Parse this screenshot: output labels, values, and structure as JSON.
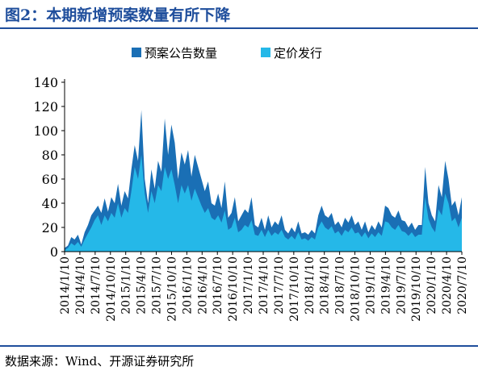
{
  "title": "图2：本期新增预案数量有所下降",
  "source": "数据来源：Wind、开源证券研究所",
  "colors": {
    "title": "#1f4e9c",
    "proposal": "#1a6fb5",
    "placement": "#25b8e8"
  },
  "chart_data": {
    "type": "area",
    "title": "",
    "xlabel": "",
    "ylabel": "",
    "ylim": [
      0,
      140
    ],
    "yticks": [
      0,
      20,
      40,
      60,
      80,
      100,
      120,
      140
    ],
    "grid": false,
    "legend_position": "top",
    "x_tick_labels": [
      "2014/1/10",
      "2014/4/10",
      "2014/7/10",
      "2014/10/10",
      "2015/1/10",
      "2015/4/10",
      "2015/7/10",
      "2015/10/10",
      "2016/1/10",
      "2016/4/10",
      "2016/7/10",
      "2016/10/10",
      "2017/1/10",
      "2017/4/10",
      "2017/7/10",
      "2017/10/10",
      "2018/1/10",
      "2018/4/10",
      "2018/7/10",
      "2018/10/10",
      "2019/1/10",
      "2019/4/10",
      "2019/7/10",
      "2019/10/10",
      "2020/1/10",
      "2020/4/10",
      "2020/7/10"
    ],
    "series": [
      {
        "name": "预案公告数量",
        "values": [
          3,
          5,
          12,
          10,
          14,
          6,
          16,
          22,
          30,
          34,
          38,
          32,
          44,
          33,
          45,
          40,
          56,
          38,
          50,
          44,
          68,
          88,
          75,
          117,
          60,
          40,
          68,
          52,
          75,
          66,
          110,
          80,
          105,
          90,
          60,
          82,
          72,
          84,
          62,
          80,
          70,
          60,
          50,
          58,
          40,
          38,
          48,
          36,
          58,
          28,
          32,
          45,
          25,
          30,
          35,
          32,
          45,
          22,
          20,
          28,
          18,
          30,
          20,
          25,
          22,
          30,
          18,
          15,
          20,
          16,
          25,
          15,
          16,
          14,
          18,
          15,
          30,
          38,
          30,
          28,
          32,
          22,
          25,
          20,
          28,
          24,
          30,
          22,
          25,
          18,
          25,
          16,
          22,
          18,
          25,
          20,
          38,
          36,
          30,
          28,
          34,
          26,
          25,
          20,
          24,
          18,
          22,
          22,
          70,
          40,
          30,
          25,
          55,
          45,
          75,
          60,
          38,
          42,
          30,
          45
        ]
      },
      {
        "name": "定价发行",
        "values": [
          1,
          3,
          7,
          5,
          8,
          4,
          10,
          15,
          20,
          26,
          30,
          22,
          30,
          25,
          32,
          28,
          40,
          28,
          36,
          32,
          50,
          70,
          60,
          80,
          48,
          32,
          50,
          40,
          55,
          50,
          70,
          60,
          68,
          55,
          40,
          55,
          48,
          55,
          42,
          52,
          45,
          38,
          32,
          36,
          28,
          26,
          30,
          24,
          34,
          18,
          20,
          28,
          16,
          18,
          22,
          20,
          26,
          14,
          13,
          18,
          12,
          18,
          13,
          16,
          14,
          18,
          12,
          10,
          13,
          10,
          16,
          10,
          11,
          9,
          12,
          10,
          20,
          25,
          20,
          18,
          21,
          15,
          17,
          13,
          18,
          16,
          20,
          15,
          16,
          12,
          16,
          11,
          15,
          12,
          16,
          13,
          25,
          24,
          20,
          18,
          22,
          17,
          16,
          13,
          16,
          12,
          14,
          14,
          45,
          27,
          20,
          16,
          35,
          30,
          48,
          40,
          25,
          28,
          20,
          28
        ]
      }
    ]
  }
}
